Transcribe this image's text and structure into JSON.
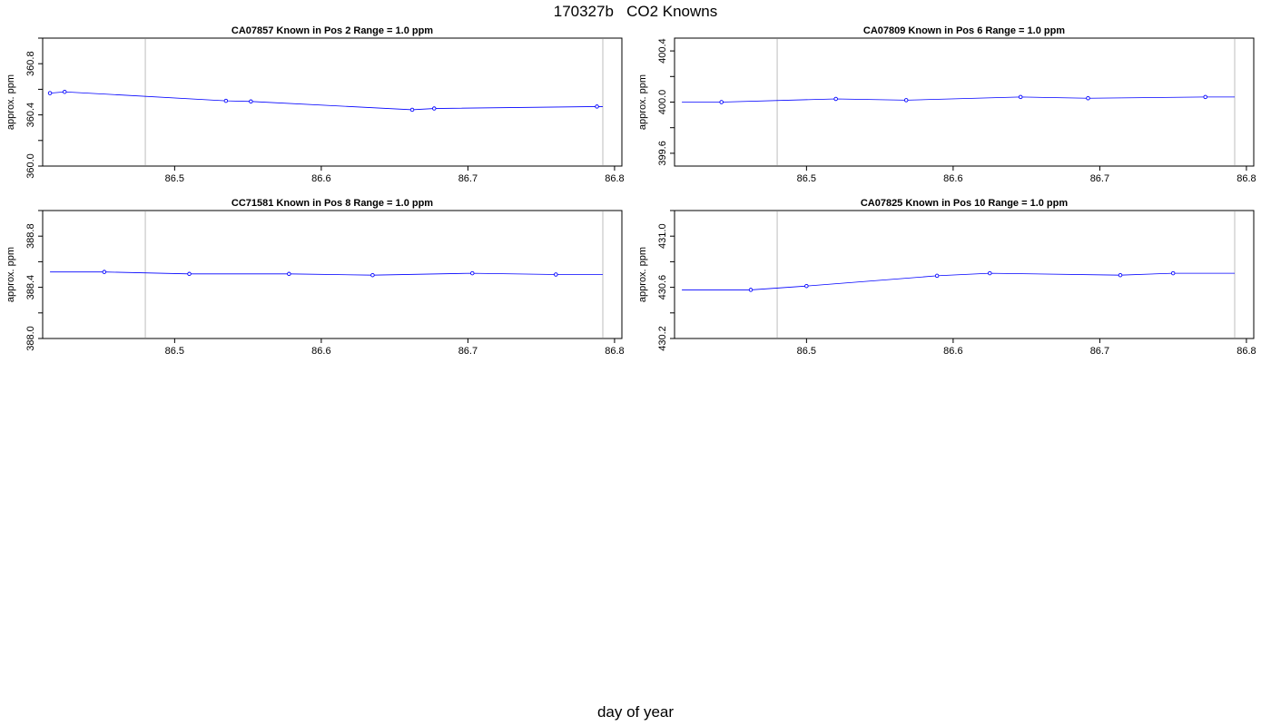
{
  "title": "170327b   CO2 Knowns",
  "xlabel": "day of year",
  "colors": {
    "series": "#0000ff",
    "vline": "#bebebe",
    "axis": "#000000"
  },
  "chart_data": [
    {
      "type": "line",
      "title": "CA07857    Known in Pos 2          Range = 1.0 ppm",
      "ylabel": "approx. ppm",
      "xlim": [
        86.41,
        86.805
      ],
      "ylim": [
        360.0,
        361.0
      ],
      "xticks": [
        86.5,
        86.6,
        86.7,
        86.8
      ],
      "yticks": [
        360.0,
        360.4,
        360.8
      ],
      "vlines": [
        86.48,
        86.792
      ],
      "x": [
        86.415,
        86.425,
        86.535,
        86.552,
        86.662,
        86.677,
        86.788
      ],
      "y": [
        360.57,
        360.58,
        360.51,
        360.505,
        360.44,
        360.45,
        360.465
      ],
      "line_end": 86.792
    },
    {
      "type": "line",
      "title": "CA07809    Known in Pos 6          Range = 1.0 ppm",
      "ylabel": "approx. ppm",
      "xlim": [
        86.41,
        86.805
      ],
      "ylim": [
        399.5,
        400.5
      ],
      "xticks": [
        86.5,
        86.6,
        86.7,
        86.8
      ],
      "yticks": [
        399.6,
        400.0,
        400.4
      ],
      "vlines": [
        86.48,
        86.792
      ],
      "x": [
        86.442,
        86.52,
        86.568,
        86.646,
        86.692,
        86.772
      ],
      "y": [
        400.0,
        400.025,
        400.015,
        400.04,
        400.03,
        400.04
      ],
      "line_start": 86.415,
      "line_end": 86.792
    },
    {
      "type": "line",
      "title": "CC71581    Known in Pos 8          Range = 1.0 ppm",
      "ylabel": "approx. ppm",
      "xlim": [
        86.41,
        86.805
      ],
      "ylim": [
        388.0,
        389.0
      ],
      "xticks": [
        86.5,
        86.6,
        86.7,
        86.8
      ],
      "yticks": [
        388.0,
        388.4,
        388.8
      ],
      "vlines": [
        86.48,
        86.792
      ],
      "x": [
        86.452,
        86.51,
        86.578,
        86.635,
        86.703,
        86.76
      ],
      "y": [
        388.52,
        388.505,
        388.505,
        388.495,
        388.51,
        388.5
      ],
      "line_start": 86.415,
      "line_end": 86.792
    },
    {
      "type": "line",
      "title": "CA07825    Known in Pos 10          Range = 1.0 ppm",
      "ylabel": "approx. ppm",
      "xlim": [
        86.41,
        86.805
      ],
      "ylim": [
        430.2,
        431.2
      ],
      "xticks": [
        86.5,
        86.6,
        86.7,
        86.8
      ],
      "yticks": [
        430.2,
        430.6,
        431.0
      ],
      "vlines": [
        86.48,
        86.792
      ],
      "x": [
        86.462,
        86.5,
        86.589,
        86.625,
        86.714,
        86.75
      ],
      "y": [
        430.58,
        430.61,
        430.69,
        430.71,
        430.695,
        430.71
      ],
      "line_start": 86.415,
      "line_end": 86.792
    }
  ]
}
